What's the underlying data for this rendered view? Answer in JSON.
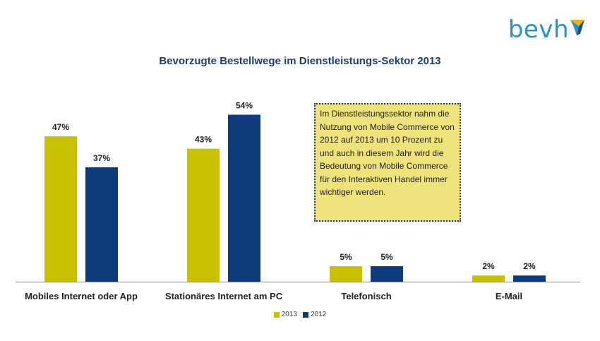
{
  "logo": {
    "text": "bevh"
  },
  "colors": {
    "s2013": "#c8c100",
    "s2012": "#0f3a7e",
    "axis": "#8a8a8a"
  },
  "note": {
    "text": "Im Dienstleistungssektor nahm die Nutzung von Mobile Commerce von 2012 auf 2013 um 10 Prozent zu und auch in diesem Jahr wird die Bedeutung von Mobile Commerce für den Interaktiven Handel immer wichtiger werden."
  },
  "chart_data": {
    "type": "bar",
    "title": "Bevorzugte Bestellwege im Dienstleistungs-Sektor 2013",
    "categories": [
      "Mobiles Internet oder App",
      "Stationäres Internet am PC",
      "Telefonisch",
      "E-Mail"
    ],
    "series": [
      {
        "name": "2013",
        "values": [
          47,
          43,
          5,
          2
        ],
        "labels": [
          "47%",
          "43%",
          "5%",
          "2%"
        ]
      },
      {
        "name": "2012",
        "values": [
          37,
          54,
          5,
          2
        ],
        "labels": [
          "37%",
          "54%",
          "5%",
          "2%"
        ]
      }
    ],
    "ylim": [
      0,
      60
    ],
    "legend": "bottom-center",
    "grid": false
  }
}
